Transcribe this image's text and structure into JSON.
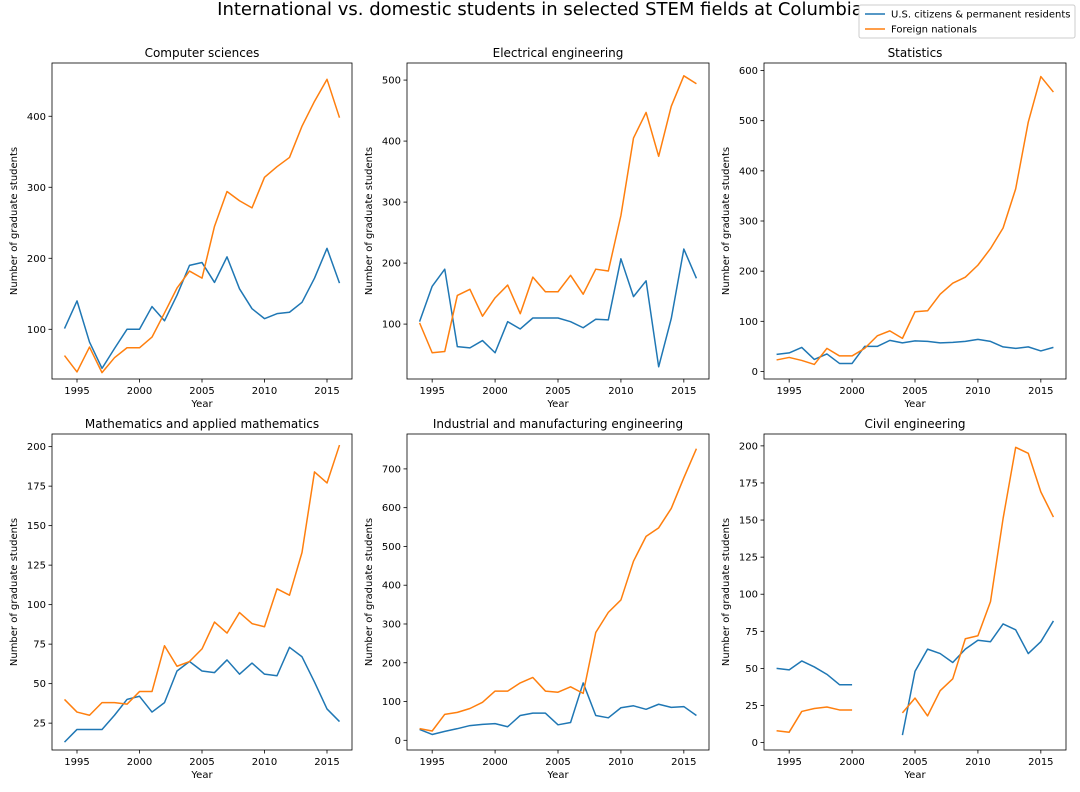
{
  "figure_title": "International vs. domestic students in selected STEM fields at Columbia",
  "legend": [
    {
      "label": "U.S. citizens & permanent residents",
      "color": "#1f77b4"
    },
    {
      "label": "Foreign nationals",
      "color": "#ff7f0e"
    }
  ],
  "chart_data": [
    {
      "type": "line",
      "title": "Computer sciences",
      "xlabel": "Year",
      "ylabel": "Number of graduate students",
      "x": [
        1994,
        1995,
        1996,
        1997,
        1998,
        1999,
        2000,
        2001,
        2002,
        2003,
        2004,
        2005,
        2006,
        2007,
        2008,
        2009,
        2010,
        2011,
        2012,
        2013,
        2014,
        2015,
        2016
      ],
      "xlim": [
        1993,
        2017
      ],
      "ylim": [
        30,
        475
      ],
      "xticks": [
        1995,
        2000,
        2005,
        2010,
        2015
      ],
      "yticks": [
        100,
        200,
        300,
        400
      ],
      "series": [
        {
          "name": "U.S. citizens & permanent residents",
          "color": "#1f77b4",
          "values": [
            101,
            140,
            82,
            45,
            73,
            100,
            100,
            132,
            112,
            148,
            190,
            194,
            166,
            202,
            157,
            129,
            115,
            122,
            124,
            138,
            172,
            214,
            165
          ]
        },
        {
          "name": "Foreign nationals",
          "color": "#ff7f0e",
          "values": [
            63,
            40,
            75,
            39,
            60,
            74,
            74,
            89,
            123,
            158,
            182,
            172,
            245,
            294,
            281,
            271,
            314,
            329,
            342,
            386,
            421,
            452,
            398
          ]
        }
      ]
    },
    {
      "type": "line",
      "title": "Electrical engineering",
      "xlabel": "Year",
      "ylabel": "Number of graduate students",
      "x": [
        1994,
        1995,
        1996,
        1997,
        1998,
        1999,
        2000,
        2001,
        2002,
        2003,
        2004,
        2005,
        2006,
        2007,
        2008,
        2009,
        2010,
        2011,
        2012,
        2013,
        2014,
        2015,
        2016
      ],
      "xlim": [
        1993,
        2017
      ],
      "ylim": [
        10,
        528
      ],
      "xticks": [
        1995,
        2000,
        2005,
        2010,
        2015
      ],
      "yticks": [
        100,
        200,
        300,
        400,
        500
      ],
      "series": [
        {
          "name": "U.S. citizens & permanent residents",
          "color": "#1f77b4",
          "values": [
            104,
            162,
            190,
            63,
            61,
            73,
            53,
            104,
            92,
            110,
            110,
            110,
            104,
            94,
            108,
            107,
            207,
            145,
            171,
            30,
            109,
            223,
            175
          ]
        },
        {
          "name": "Foreign nationals",
          "color": "#ff7f0e",
          "values": [
            102,
            53,
            55,
            147,
            157,
            113,
            143,
            164,
            117,
            177,
            153,
            153,
            180,
            149,
            190,
            187,
            278,
            405,
            447,
            375,
            457,
            507,
            494
          ]
        }
      ]
    },
    {
      "type": "line",
      "title": "Statistics",
      "xlabel": "Year",
      "ylabel": "Number of graduate students",
      "x": [
        1994,
        1995,
        1996,
        1997,
        1998,
        1999,
        2000,
        2001,
        2002,
        2003,
        2004,
        2005,
        2006,
        2007,
        2008,
        2009,
        2010,
        2011,
        2012,
        2013,
        2014,
        2015,
        2016
      ],
      "xlim": [
        1993,
        2017
      ],
      "ylim": [
        -15,
        615
      ],
      "xticks": [
        1995,
        2000,
        2005,
        2010,
        2015
      ],
      "yticks": [
        0,
        100,
        200,
        300,
        400,
        500,
        600
      ],
      "series": [
        {
          "name": "U.S. citizens & permanent residents",
          "color": "#1f77b4",
          "values": [
            34,
            37,
            48,
            24,
            35,
            16,
            16,
            50,
            50,
            62,
            57,
            61,
            60,
            57,
            58,
            60,
            64,
            60,
            49,
            46,
            49,
            41,
            48
          ]
        },
        {
          "name": "Foreign nationals",
          "color": "#ff7f0e",
          "values": [
            23,
            28,
            22,
            14,
            46,
            31,
            31,
            46,
            71,
            81,
            66,
            119,
            121,
            154,
            176,
            188,
            212,
            245,
            286,
            364,
            497,
            588,
            557
          ]
        }
      ]
    },
    {
      "type": "line",
      "title": "Mathematics and applied mathematics",
      "xlabel": "Year",
      "ylabel": "Number of graduate students",
      "x": [
        1994,
        1995,
        1996,
        1997,
        1998,
        1999,
        2000,
        2001,
        2002,
        2003,
        2004,
        2005,
        2006,
        2007,
        2008,
        2009,
        2010,
        2011,
        2012,
        2013,
        2014,
        2015,
        2016
      ],
      "xlim": [
        1993,
        2017
      ],
      "ylim": [
        8,
        208
      ],
      "xticks": [
        1995,
        2000,
        2005,
        2010,
        2015
      ],
      "yticks": [
        25,
        50,
        75,
        100,
        125,
        150,
        175,
        200
      ],
      "series": [
        {
          "name": "U.S. citizens & permanent residents",
          "color": "#1f77b4",
          "values": [
            13,
            21,
            21,
            21,
            30,
            40,
            42,
            32,
            38,
            58,
            64,
            58,
            57,
            65,
            56,
            63,
            56,
            55,
            73,
            67,
            51,
            34,
            26
          ]
        },
        {
          "name": "Foreign nationals",
          "color": "#ff7f0e",
          "values": [
            40,
            32,
            30,
            38,
            38,
            37,
            45,
            45,
            74,
            61,
            64,
            72,
            89,
            82,
            95,
            88,
            86,
            110,
            106,
            133,
            184,
            177,
            201
          ]
        }
      ]
    },
    {
      "type": "line",
      "title": "Industrial and manufacturing engineering",
      "xlabel": "Year",
      "ylabel": "Number of graduate students",
      "x": [
        1994,
        1995,
        1996,
        1997,
        1998,
        1999,
        2000,
        2001,
        2002,
        2003,
        2004,
        2005,
        2006,
        2007,
        2008,
        2009,
        2010,
        2011,
        2012,
        2013,
        2014,
        2015,
        2016
      ],
      "xlim": [
        1993,
        2017
      ],
      "ylim": [
        -25,
        790
      ],
      "xticks": [
        1995,
        2000,
        2005,
        2010,
        2015
      ],
      "yticks": [
        0,
        100,
        200,
        300,
        400,
        500,
        600,
        700
      ],
      "series": [
        {
          "name": "U.S. citizens & permanent residents",
          "color": "#1f77b4",
          "values": [
            28,
            15,
            23,
            30,
            38,
            41,
            43,
            35,
            64,
            70,
            70,
            40,
            46,
            148,
            64,
            58,
            84,
            89,
            80,
            93,
            85,
            87,
            64
          ]
        },
        {
          "name": "Foreign nationals",
          "color": "#ff7f0e",
          "values": [
            30,
            24,
            67,
            72,
            82,
            98,
            127,
            127,
            148,
            162,
            127,
            124,
            138,
            121,
            278,
            330,
            362,
            462,
            526,
            548,
            598,
            677,
            752
          ]
        }
      ]
    },
    {
      "type": "line",
      "title": "Civil engineering",
      "xlabel": "Year",
      "ylabel": "Number of graduate students",
      "x": [
        1994,
        1995,
        1996,
        1997,
        1998,
        1999,
        2000,
        2001,
        2002,
        2003,
        2004,
        2005,
        2006,
        2007,
        2008,
        2009,
        2010,
        2011,
        2012,
        2013,
        2014,
        2015,
        2016
      ],
      "xlim": [
        1993,
        2017
      ],
      "ylim": [
        -5,
        208
      ],
      "xticks": [
        1995,
        2000,
        2005,
        2010,
        2015
      ],
      "yticks": [
        0,
        25,
        50,
        75,
        100,
        125,
        150,
        175,
        200
      ],
      "series": [
        {
          "name": "U.S. citizens & permanent residents",
          "color": "#1f77b4",
          "values": [
            50,
            49,
            55,
            51,
            46,
            39,
            39,
            null,
            null,
            null,
            5,
            48,
            63,
            60,
            54,
            63,
            69,
            68,
            80,
            76,
            60,
            68,
            82
          ]
        },
        {
          "name": "Foreign nationals",
          "color": "#ff7f0e",
          "values": [
            8,
            7,
            21,
            23,
            24,
            22,
            22,
            null,
            null,
            null,
            20,
            30,
            18,
            35,
            43,
            70,
            72,
            95,
            151,
            199,
            195,
            169,
            152
          ]
        }
      ]
    }
  ]
}
